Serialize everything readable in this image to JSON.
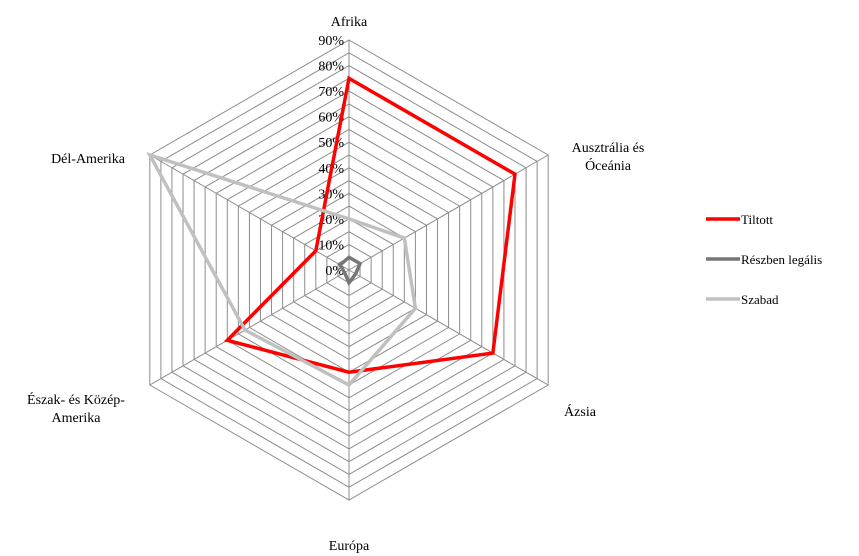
{
  "chart_data": {
    "type": "radar",
    "title": "",
    "categories": [
      "Afrika",
      "Ausztrália és Óceánia",
      "Ázsia",
      "Európa",
      "Észak- és Közép-Amerika",
      "Dél-Amerika"
    ],
    "category_label_lines": [
      [
        "Afrika"
      ],
      [
        "Ausztrália és",
        "Óceánia"
      ],
      [
        "Ázsia"
      ],
      [
        "Európa"
      ],
      [
        "Észak- és Közép-",
        "Amerika"
      ],
      [
        "Dél-Amerika"
      ]
    ],
    "rlim": [
      0,
      90
    ],
    "ticks": [
      "0%",
      "10%",
      "20%",
      "30%",
      "40%",
      "50%",
      "60%",
      "70%",
      "80%",
      "90%"
    ],
    "tick_values": [
      0,
      10,
      20,
      30,
      40,
      50,
      60,
      70,
      80,
      90
    ],
    "minor_step": 5,
    "grid": true,
    "legend_position": "right",
    "series": [
      {
        "name": "Tiltott",
        "color": "#ff0000",
        "values": [
          75,
          75,
          65,
          40,
          55,
          15
        ]
      },
      {
        "name": "Részben legális",
        "color": "#777777",
        "values": [
          5,
          5,
          3,
          5,
          2,
          4
        ]
      },
      {
        "name": "Szabad",
        "color": "#c0c0c0",
        "values": [
          20,
          25,
          30,
          45,
          47,
          90
        ]
      }
    ]
  }
}
